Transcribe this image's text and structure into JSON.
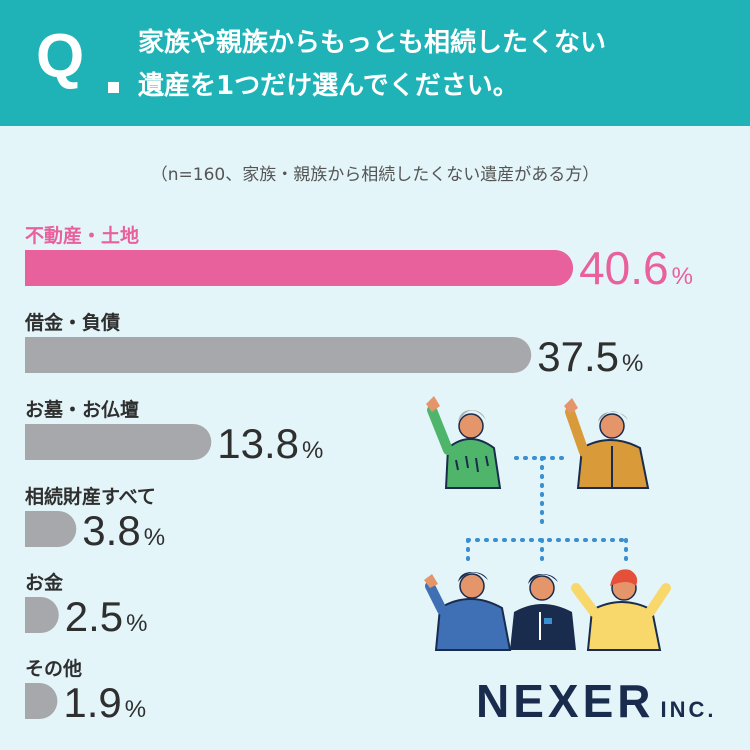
{
  "header": {
    "q_mark": "Q",
    "title_line1": "家族や親族からもっとも相続したくない",
    "title_line2": "遺産を1つだけ選んでください。"
  },
  "note": "（n=160、家族・親族から相続したくない遺産がある方）",
  "logo": {
    "main": "NEXER",
    "sub": "INC."
  },
  "colors": {
    "highlight": "#e8609c",
    "bar": "#a7a8ac",
    "header": "#1fb3b7",
    "background": "#e3f5f9"
  },
  "chart_data": {
    "type": "bar",
    "orientation": "horizontal",
    "categories": [
      "不動産・土地",
      "借金・負債",
      "お墓・お仏壇",
      "相続財産すべて",
      "お金",
      "その他"
    ],
    "values": [
      40.6,
      37.5,
      13.8,
      3.8,
      2.5,
      1.9
    ],
    "value_labels": [
      "40.6",
      "37.5",
      "13.8",
      "3.8",
      "2.5",
      "1.9"
    ],
    "unit": "%",
    "highlight_index": 0,
    "title": "",
    "xlabel": "",
    "ylabel": ""
  }
}
